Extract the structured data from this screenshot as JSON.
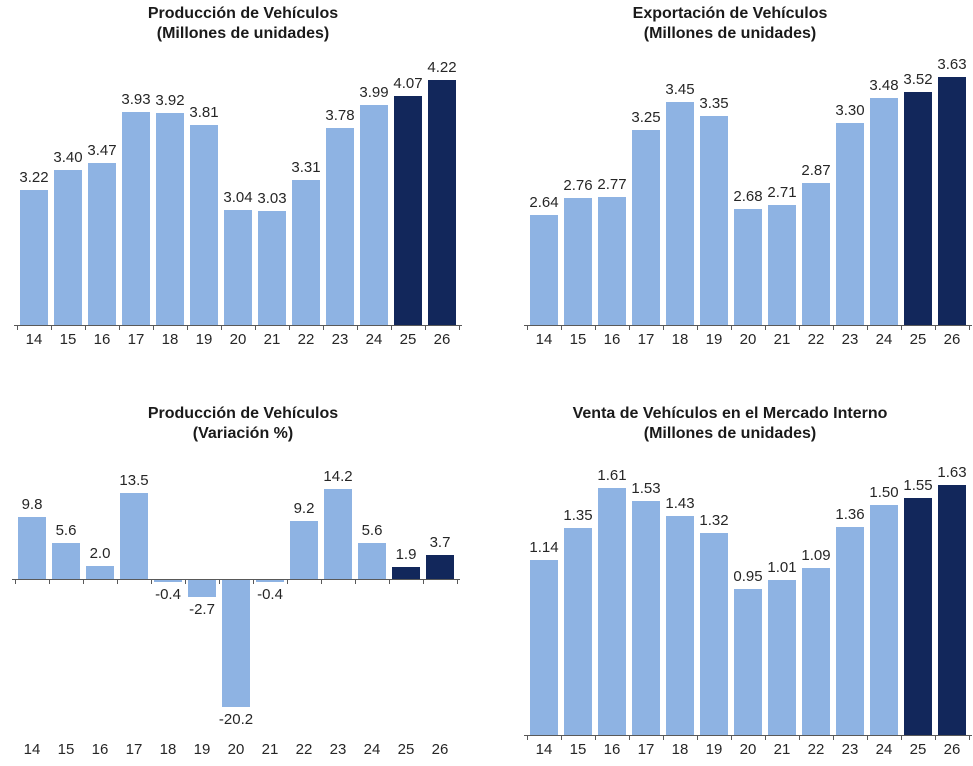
{
  "colors": {
    "bar_light": "#8EB3E3",
    "bar_dark": "#12275B",
    "axis": "#595959",
    "label_text": "#262626",
    "title_text": "#1A1A1A"
  },
  "chart_data": [
    {
      "type": "bar",
      "title": "Producción de Vehículos",
      "subtitle": "(Millones de unidades)",
      "categories": [
        "14",
        "15",
        "16",
        "17",
        "18",
        "19",
        "20",
        "21",
        "22",
        "23",
        "24",
        "25",
        "26"
      ],
      "values": [
        3.22,
        3.4,
        3.47,
        3.93,
        3.92,
        3.81,
        3.04,
        3.03,
        3.31,
        3.78,
        3.99,
        4.07,
        4.22
      ],
      "labels": [
        "3.22",
        "3.40",
        "3.47",
        "3.93",
        "3.92",
        "3.81",
        "3.04",
        "3.03",
        "3.31",
        "3.78",
        "3.99",
        "4.07",
        "4.22"
      ],
      "ylim": [
        2.0,
        4.4
      ],
      "highlight_from_index": 11,
      "xlabel": "",
      "ylabel": "",
      "grid": false,
      "legend": "none"
    },
    {
      "type": "bar",
      "title": "Exportación de Vehículos",
      "subtitle": "(Millones de unidades)",
      "categories": [
        "14",
        "15",
        "16",
        "17",
        "18",
        "19",
        "20",
        "21",
        "22",
        "23",
        "24",
        "25",
        "26"
      ],
      "values": [
        2.64,
        2.76,
        2.77,
        3.25,
        3.45,
        3.35,
        2.68,
        2.71,
        2.87,
        3.3,
        3.48,
        3.52,
        3.63
      ],
      "labels": [
        "2.64",
        "2.76",
        "2.77",
        "3.25",
        "3.45",
        "3.35",
        "2.68",
        "2.71",
        "2.87",
        "3.30",
        "3.48",
        "3.52",
        "3.63"
      ],
      "ylim": [
        1.85,
        3.75
      ],
      "highlight_from_index": 11,
      "xlabel": "",
      "ylabel": "",
      "grid": false,
      "legend": "none"
    },
    {
      "type": "bar",
      "title": "Producción de Vehículos",
      "subtitle": "(Variación %)",
      "categories": [
        "14",
        "15",
        "16",
        "17",
        "18",
        "19",
        "20",
        "21",
        "22",
        "23",
        "24",
        "25",
        "26"
      ],
      "values": [
        9.8,
        5.6,
        2.0,
        13.5,
        -0.4,
        -2.7,
        -20.2,
        -0.4,
        9.2,
        14.2,
        5.6,
        1.9,
        3.7
      ],
      "labels": [
        "9.8",
        "5.6",
        "2.0",
        "13.5",
        "-0.4",
        "-2.7",
        "-20.2",
        "-0.4",
        "9.2",
        "14.2",
        "5.6",
        "1.9",
        "3.7"
      ],
      "ylim": [
        -24,
        18
      ],
      "highlight_from_index": 11,
      "xlabel": "",
      "ylabel": "",
      "grid": false,
      "legend": "none"
    },
    {
      "type": "bar",
      "title": "Venta de Vehículos en el Mercado Interno",
      "subtitle": "(Millones de unidades)",
      "categories": [
        "14",
        "15",
        "16",
        "17",
        "18",
        "19",
        "20",
        "21",
        "22",
        "23",
        "24",
        "25",
        "26"
      ],
      "values": [
        1.14,
        1.35,
        1.61,
        1.53,
        1.43,
        1.32,
        0.95,
        1.01,
        1.09,
        1.36,
        1.5,
        1.55,
        1.63
      ],
      "labels": [
        "1.14",
        "1.35",
        "1.61",
        "1.53",
        "1.43",
        "1.32",
        "0.95",
        "1.01",
        "1.09",
        "1.36",
        "1.50",
        "1.55",
        "1.63"
      ],
      "ylim": [
        0,
        1.73
      ],
      "highlight_from_index": 11,
      "xlabel": "",
      "ylabel": "",
      "grid": false,
      "legend": "none"
    }
  ]
}
